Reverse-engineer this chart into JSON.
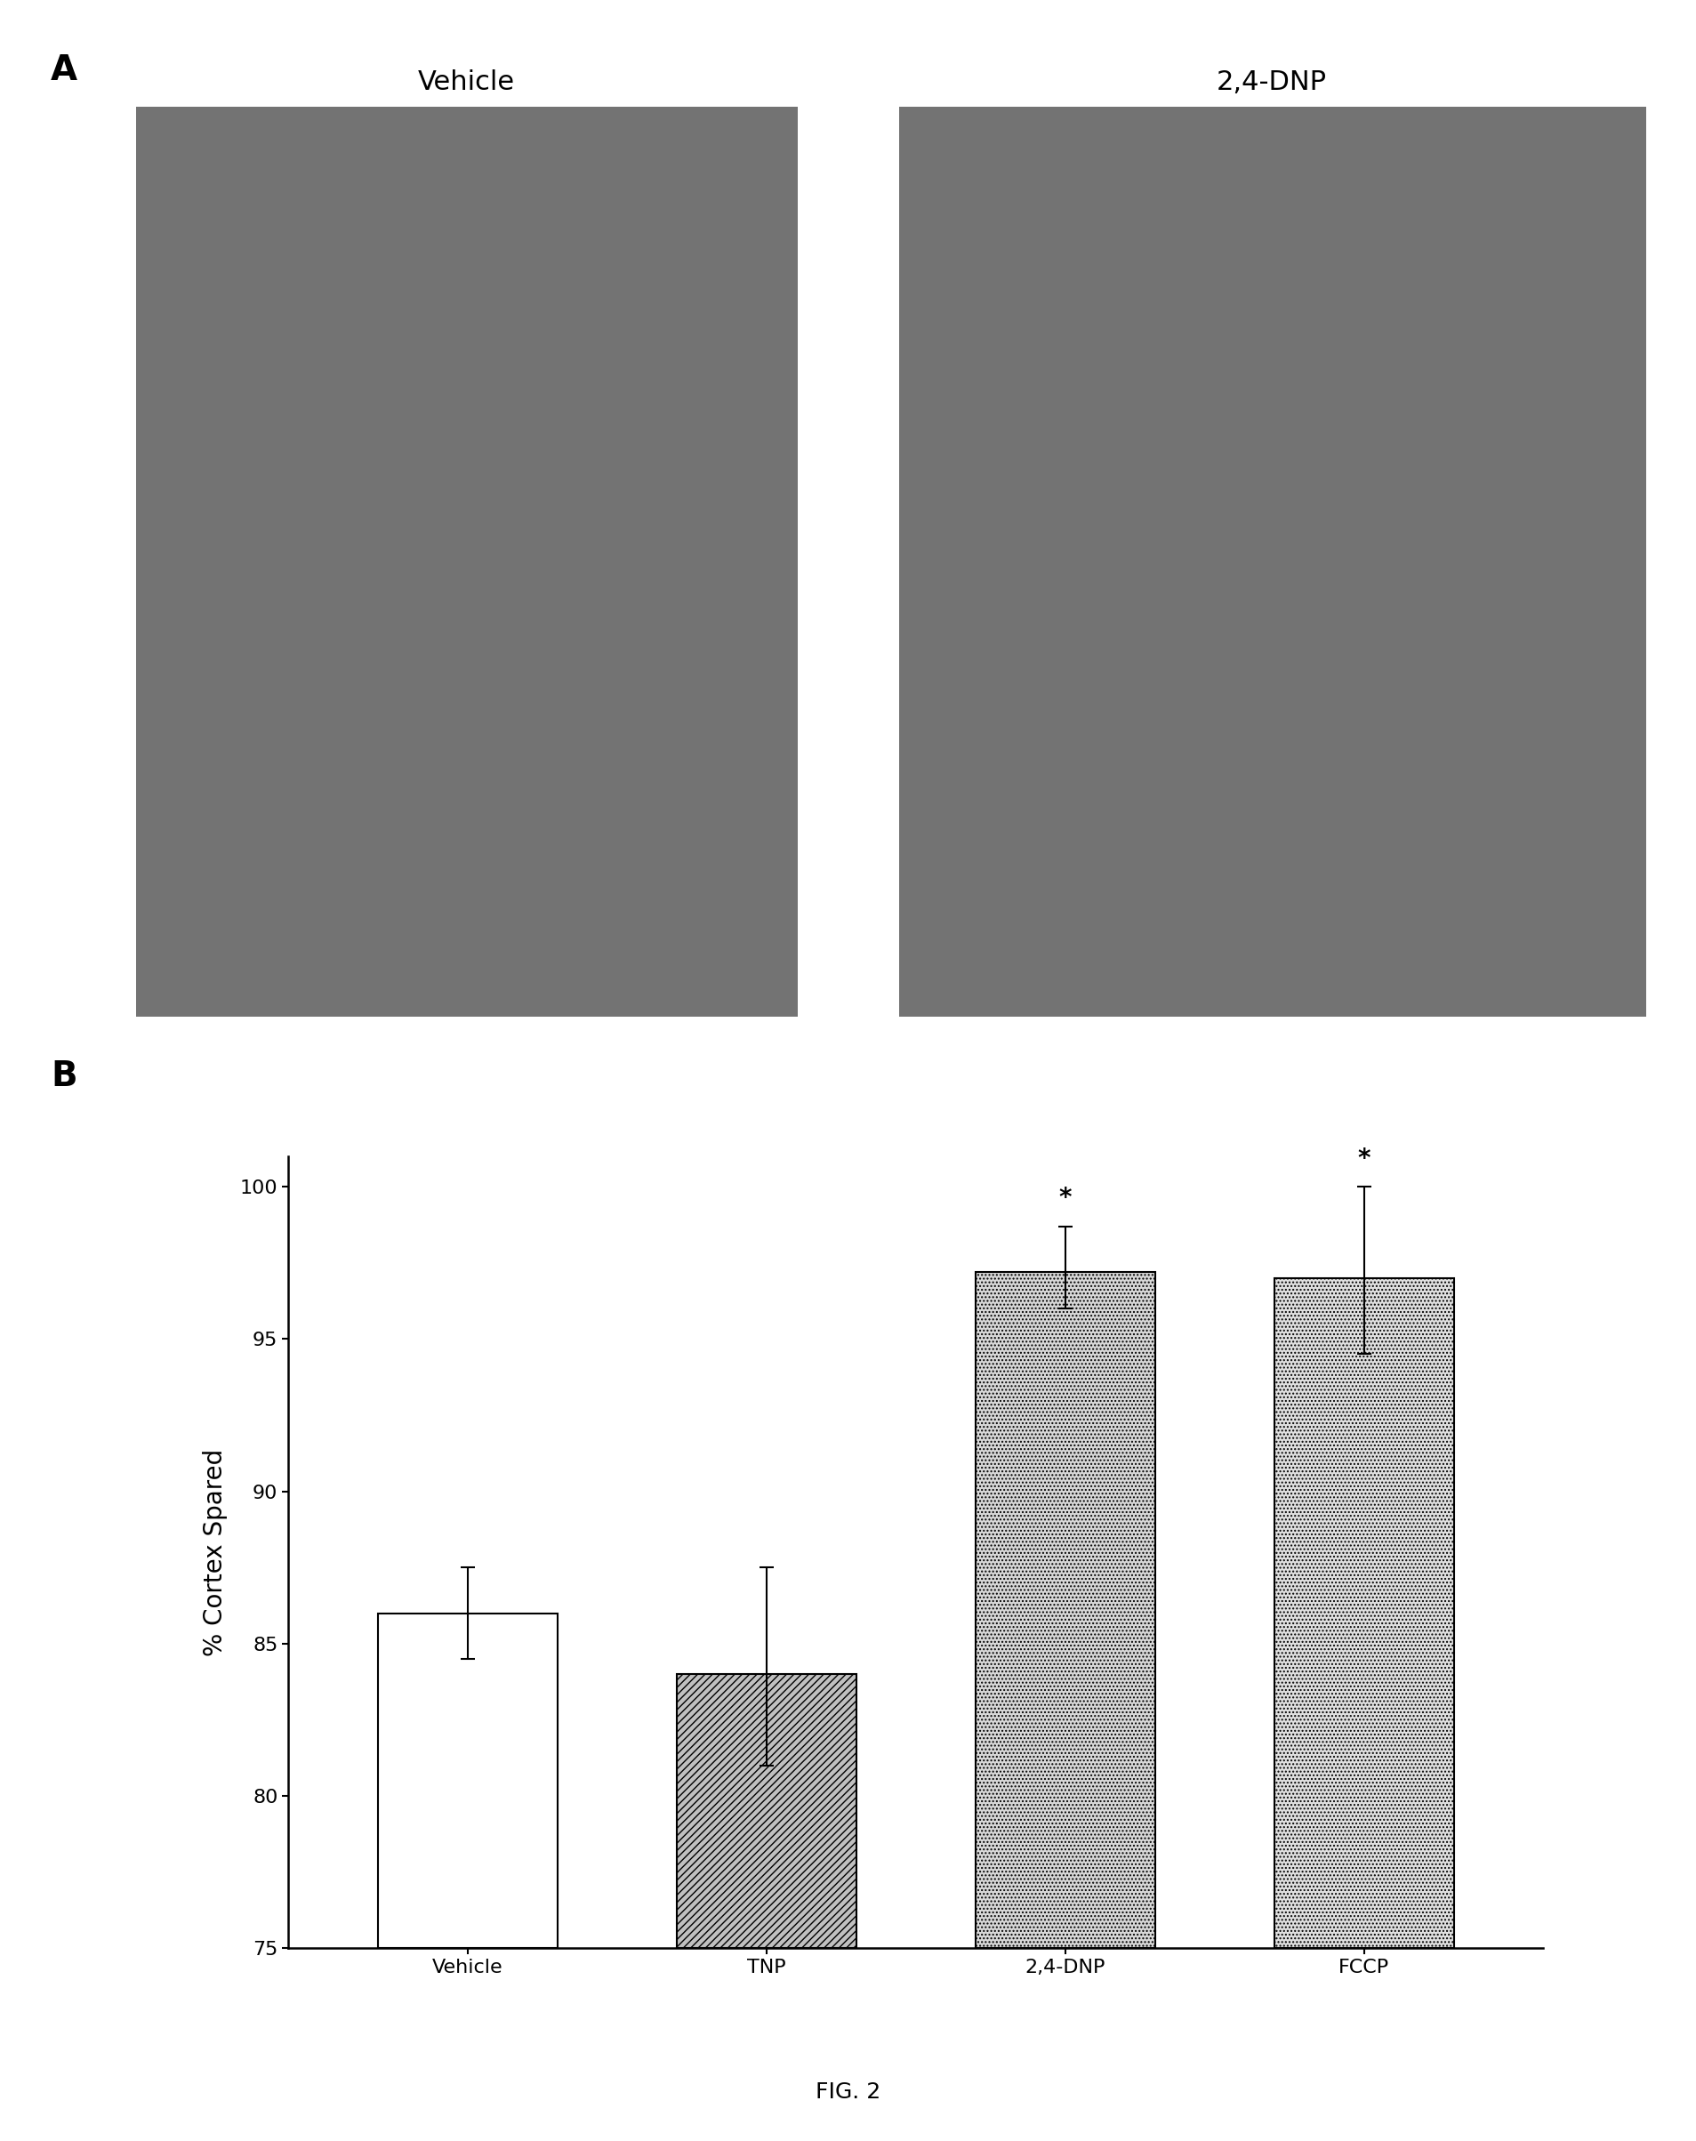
{
  "panel_b": {
    "categories": [
      "Vehicle",
      "TNP",
      "2,4-DNP",
      "FCCP"
    ],
    "values": [
      86.0,
      84.0,
      97.2,
      97.0
    ],
    "errors_upper": [
      1.5,
      3.5,
      1.5,
      3.0
    ],
    "errors_lower": [
      1.5,
      3.0,
      1.2,
      2.5
    ],
    "ylim": [
      75,
      101
    ],
    "yticks": [
      75,
      80,
      85,
      90,
      95,
      100
    ],
    "ylabel": "% Cortex Spared",
    "significance": [
      false,
      false,
      true,
      true
    ],
    "bar_width": 0.6,
    "bar_colors": [
      "white",
      "#c0c0c0",
      "#d8d8d8",
      "#e0e0e0"
    ],
    "bar_hatches": [
      null,
      "////",
      "....",
      "...."
    ],
    "bar_edge_colors": [
      "black",
      "black",
      "black",
      "black"
    ]
  },
  "panel_a_left_label": "Vehicle",
  "panel_a_right_label": "2,4-DNP",
  "fig_caption": "FIG. 2",
  "label_a": "A",
  "label_b": "B",
  "background_color": "#ffffff",
  "text_color": "#000000",
  "font_size_axis_label": 20,
  "font_size_ticks": 16,
  "font_size_panel_label": 28,
  "font_size_caption": 18,
  "font_size_image_title": 22,
  "font_size_sig": 20
}
